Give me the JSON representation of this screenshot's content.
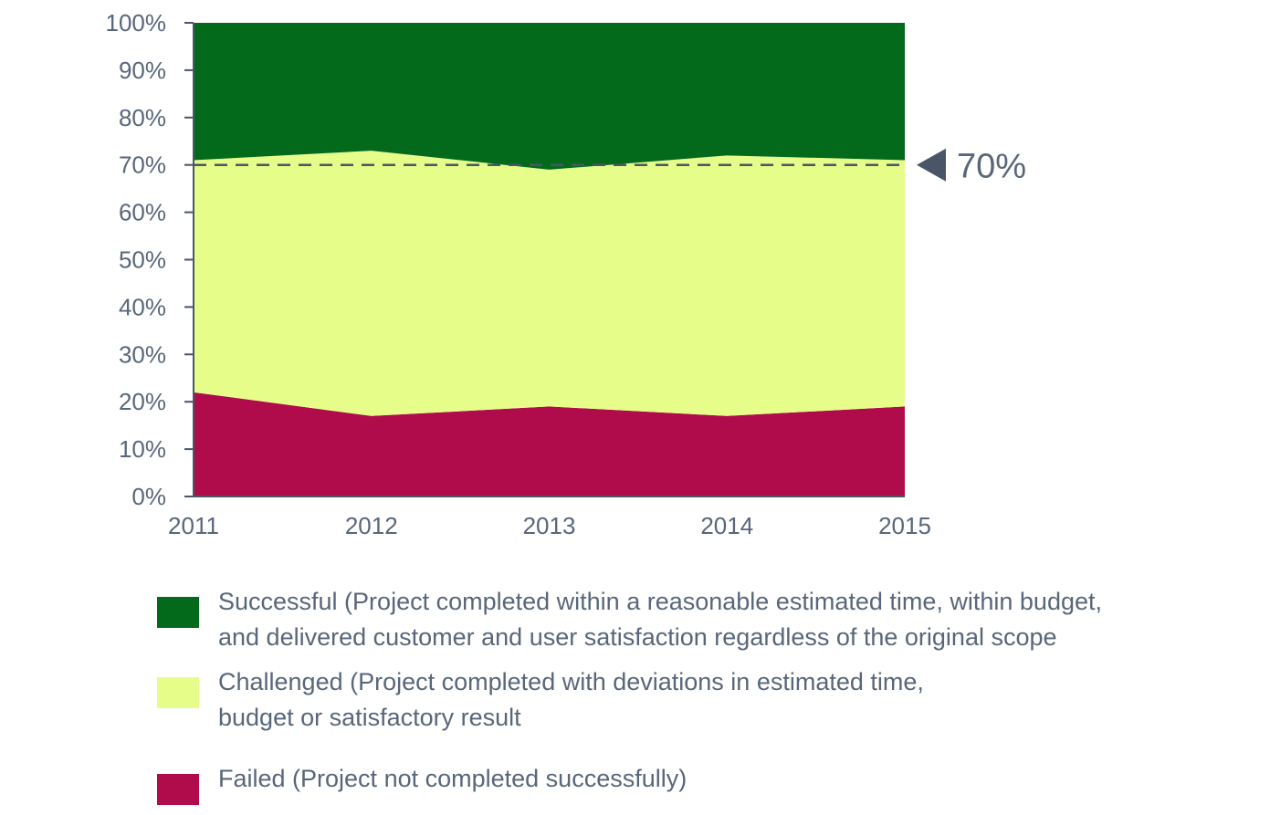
{
  "chart_data": {
    "type": "area",
    "stacked": true,
    "x": [
      "2011",
      "2012",
      "2013",
      "2014",
      "2015"
    ],
    "y_ticks": [
      "0%",
      "10%",
      "20%",
      "30%",
      "40%",
      "50%",
      "60%",
      "70%",
      "80%",
      "90%",
      "100%"
    ],
    "ylim": [
      0,
      100
    ],
    "series": [
      {
        "name": "Failed",
        "color": "#b00b4a",
        "values": [
          22,
          17,
          19,
          17,
          19
        ]
      },
      {
        "name": "Challenged",
        "color": "#e6fd8a",
        "values": [
          49,
          56,
          50,
          55,
          52
        ]
      },
      {
        "name": "Successful",
        "color": "#036a1c",
        "values": [
          29,
          27,
          31,
          28,
          29
        ]
      }
    ],
    "reference_line": {
      "value": 70,
      "label": "70%",
      "style": "dashed",
      "color": "#4a5668"
    },
    "legend": [
      {
        "color": "#036a1c",
        "line1": "Successful (Project completed within a reasonable estimated time, within budget,",
        "line2": "and delivered customer and user satisfaction regardless of the original scope"
      },
      {
        "color": "#e6fd8a",
        "line1": "Challenged (Project completed with deviations in estimated time,",
        "line2": "budget or satisfactory result"
      },
      {
        "color": "#b00b4a",
        "line1": "Failed (Project not completed successfully)",
        "line2": ""
      }
    ],
    "grid": false
  }
}
